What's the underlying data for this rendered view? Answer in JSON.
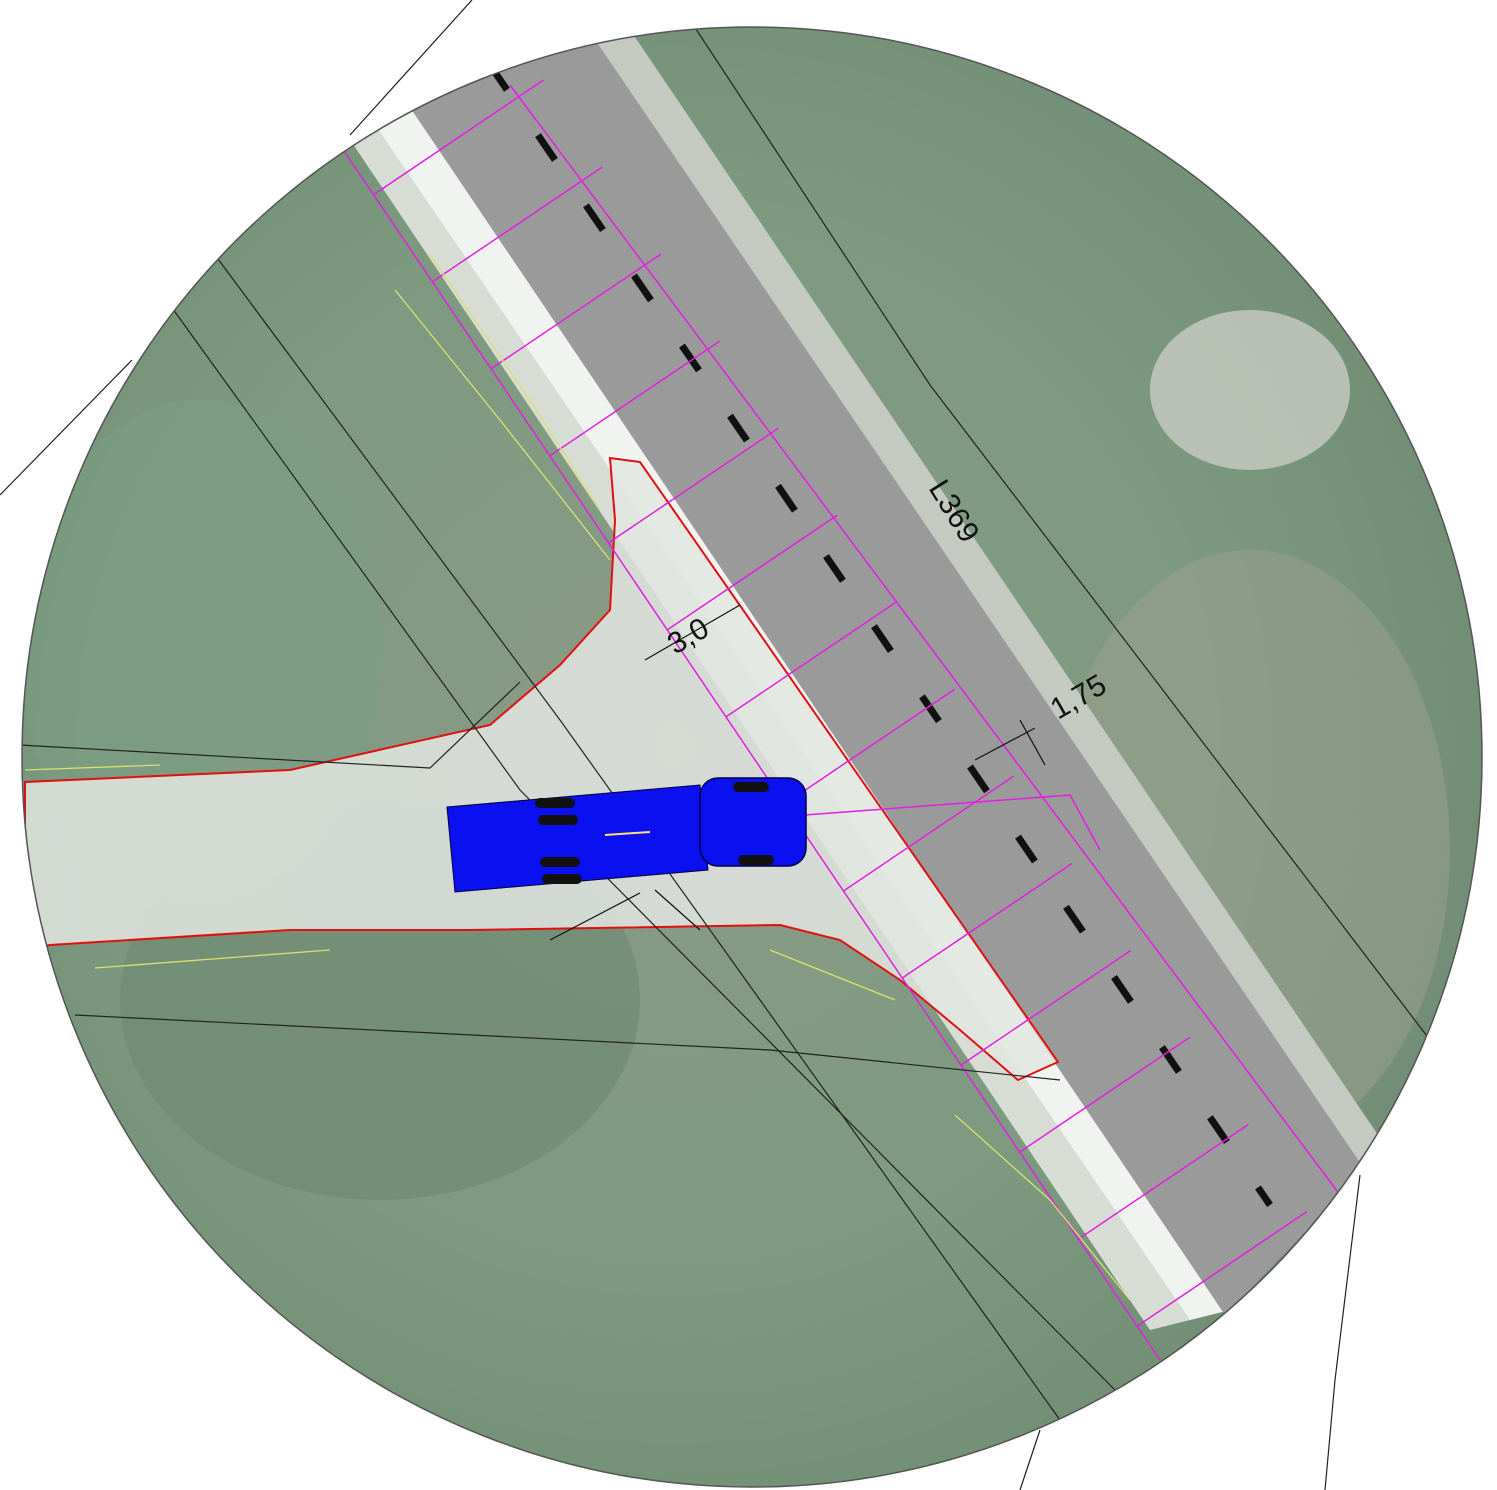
{
  "labels": {
    "road": "L369",
    "dim_width": "3,0",
    "dim_lane": "1,75"
  }
}
